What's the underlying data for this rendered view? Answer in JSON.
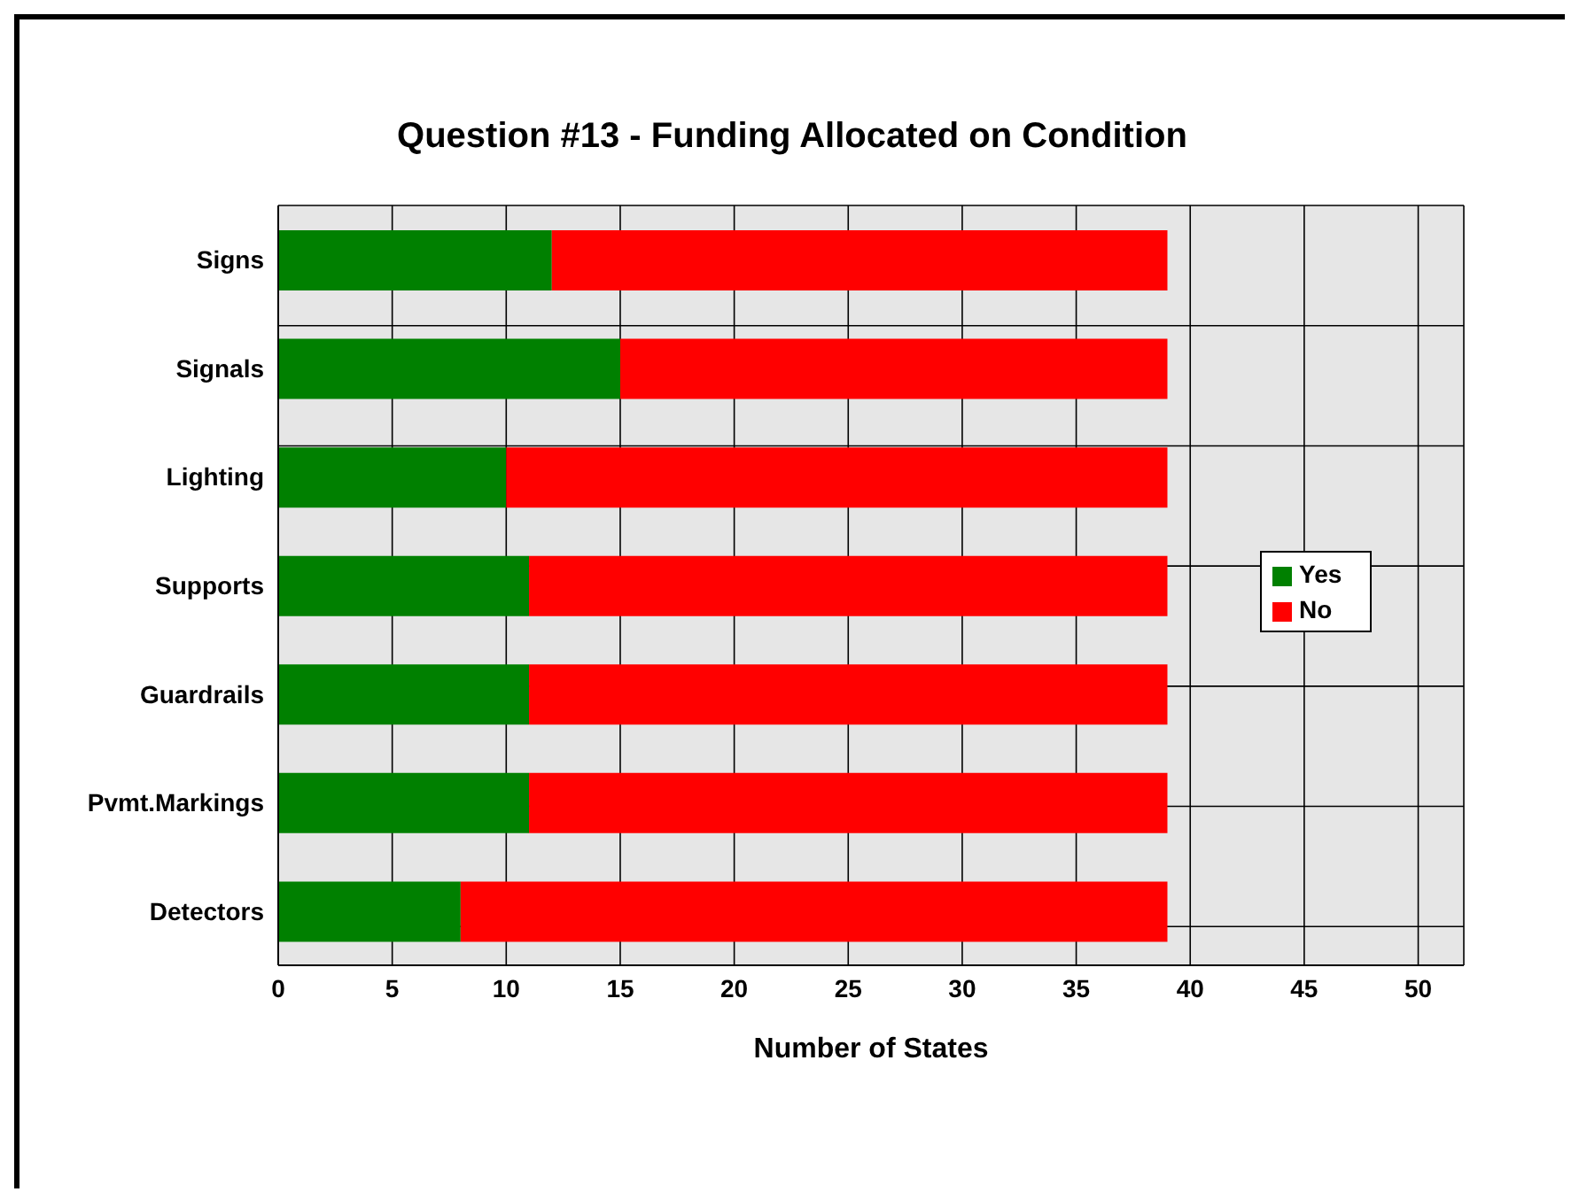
{
  "chart_data": {
    "type": "bar",
    "orientation": "horizontal",
    "stacked": true,
    "title": "Question #13 - Funding Allocated on Condition",
    "xlabel": "Number of States",
    "categories": [
      "Signs",
      "Signals",
      "Lighting",
      "Supports",
      "Guardrails",
      "Pvmt.Markings",
      "Detectors"
    ],
    "series": [
      {
        "name": "Yes",
        "color": "#008000",
        "values": [
          12,
          15,
          10,
          11,
          11,
          11,
          8
        ]
      },
      {
        "name": "No",
        "color": "#ff0000",
        "values": [
          27,
          24,
          29,
          28,
          28,
          28,
          31
        ]
      }
    ],
    "xlim": [
      0,
      52
    ],
    "xticks": [
      0,
      5,
      10,
      15,
      20,
      25,
      30,
      35,
      40,
      45,
      50
    ],
    "grid": true,
    "legend": "right"
  }
}
